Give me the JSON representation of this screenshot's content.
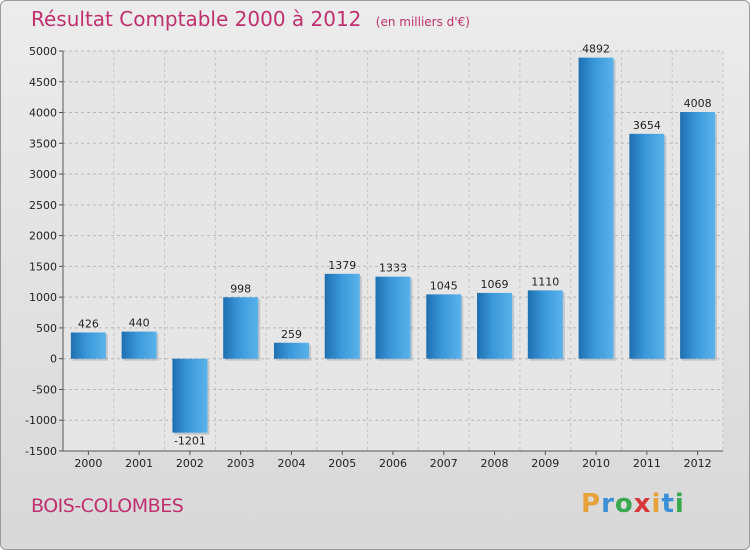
{
  "chart_data": {
    "type": "bar",
    "title": "Résultat Comptable 2000 à 2012",
    "subtitle": "(en milliers d'€)",
    "categories": [
      "2000",
      "2001",
      "2002",
      "2003",
      "2004",
      "2005",
      "2006",
      "2007",
      "2008",
      "2009",
      "2010",
      "2011",
      "2012"
    ],
    "values": [
      426,
      440,
      -1201,
      998,
      259,
      1379,
      1333,
      1045,
      1069,
      1110,
      4892,
      3654,
      4008
    ],
    "ylim": [
      -1500,
      5000
    ],
    "yticks": [
      -1500,
      -1000,
      -500,
      0,
      500,
      1000,
      1500,
      2000,
      2500,
      3000,
      3500,
      4000,
      4500,
      5000
    ],
    "xlabel": "",
    "ylabel": "",
    "grid": true,
    "bar_color": "#3a98da"
  },
  "footer": {
    "city": "BOIS-COLOMBES",
    "logo_letters": [
      "P",
      "r",
      "o",
      "x",
      "i",
      "t",
      "i"
    ],
    "logo_colors": [
      "#e8a23a",
      "#3a8fd6",
      "#3aa84f",
      "#d8383a",
      "#e8a23a",
      "#3a8fd6",
      "#3aa84f"
    ]
  }
}
